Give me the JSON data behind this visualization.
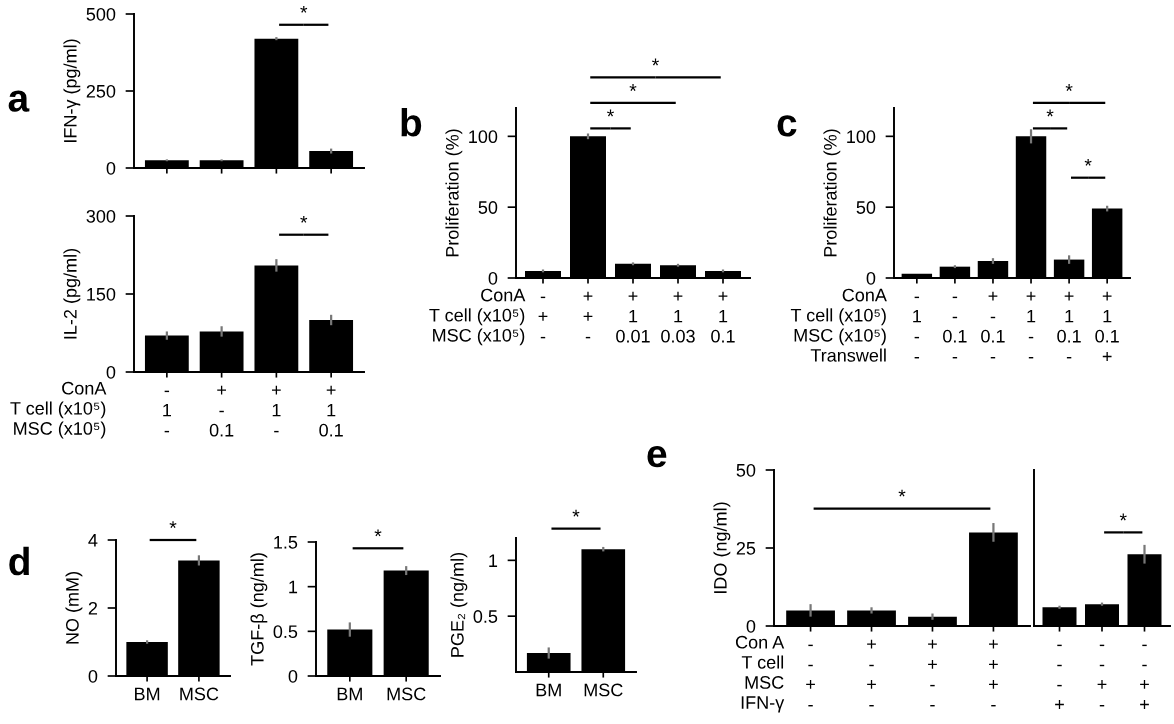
{
  "chart_data": [
    {
      "type": "bar",
      "title": "a",
      "ylabel": "IFN-γ (pg/ml)",
      "categories": [
        null,
        null,
        null,
        null
      ],
      "values": [
        25,
        25,
        420,
        55
      ],
      "errors": [
        3,
        3,
        5,
        8
      ],
      "color": "#000000",
      "ylim": [
        0,
        500
      ],
      "yticks": [
        0,
        250,
        500
      ],
      "tick_labels": "y",
      "annotations": [
        "*"
      ]
    },
    {
      "type": "bar",
      "xlabel": "ConA\nT cell (x10⁵)\nMSC (x10⁵)",
      "ylabel": "IL-2 (pg/ml)",
      "categories": [
        "-\n1\n-",
        "+\n-\n0.1",
        "+\n1\n-",
        "+\n1\n0.1"
      ],
      "values": [
        70,
        78,
        205,
        100
      ],
      "errors": [
        8,
        10,
        12,
        10
      ],
      "color": "#000000",
      "ylim": [
        0,
        300
      ],
      "yticks": [
        0,
        150,
        300
      ],
      "annotations": [
        "*"
      ]
    },
    {
      "type": "bar",
      "title": "b",
      "xlabel": "ConA\nT cell (x10⁵)\nMSC (x10⁵)",
      "ylabel": "Proliferation (%)",
      "categories": [
        "-\n+\n-",
        "+\n+\n-",
        "+\n1\n0.01",
        "+\n1\n0.03",
        "+\n1\n0.1"
      ],
      "values": [
        5,
        100,
        10,
        9,
        5
      ],
      "errors": [
        1,
        2,
        1,
        1,
        1
      ],
      "color": "#000000",
      "ylim": [
        0,
        120
      ],
      "yticks": [
        0,
        50,
        100
      ],
      "annotations": [
        "*",
        "*",
        "*"
      ]
    },
    {
      "type": "bar",
      "title": "c",
      "xlabel": "ConA\nT cell (x10⁵)\nMSC (x10⁵)\nTranswell",
      "ylabel": "Proliferation (%)",
      "categories": [
        "-\n1\n-\n-",
        "-\n-\n0.1\n-",
        "+\n-\n0.1\n-",
        "+\n1\n-\n-",
        "+\n1\n0.1\n-",
        "+\n1\n0.1\n+"
      ],
      "values": [
        3,
        8,
        12,
        100,
        13,
        49
      ],
      "errors": [
        null,
        1,
        2,
        5,
        3,
        2
      ],
      "color": "#000000",
      "ylim": [
        0,
        120
      ],
      "yticks": [
        0,
        50,
        100
      ],
      "annotations": [
        "*",
        "*",
        "*"
      ]
    },
    {
      "type": "bar",
      "title": "d",
      "ylabel": "NO (mM)",
      "categories": [
        "BM",
        "MSC"
      ],
      "values": [
        1,
        3.4
      ],
      "errors": [
        0.05,
        0.15
      ],
      "color": "#000000",
      "ylim": [
        0,
        4
      ],
      "yticks": [
        0,
        2,
        4
      ],
      "annotations": [
        "*"
      ]
    },
    {
      "type": "bar",
      "ylabel": "TGF-β (ng/ml)",
      "categories": [
        "BM",
        "MSC"
      ],
      "values": [
        0.52,
        1.18
      ],
      "errors": [
        0.08,
        0.05
      ],
      "color": "#000000",
      "ylim": [
        0,
        1.5
      ],
      "yticks": [
        0,
        0.5,
        1,
        1.5
      ],
      "annotations": [
        "*"
      ]
    },
    {
      "type": "bar",
      "ylabel": "PGE₂ (ng/ml)",
      "categories": [
        "BM",
        "MSC"
      ],
      "values": [
        0.17,
        1.1
      ],
      "errors": [
        0.05,
        0.02
      ],
      "color": "#000000",
      "ylim": [
        0,
        1.2
      ],
      "yticks": [
        0.5,
        1
      ],
      "annotations": [
        "*"
      ]
    },
    {
      "type": "bar",
      "title": "e",
      "xlabel": "Con A\nT cell\nMSC\nIFN-γ",
      "ylabel": "IDO (ng/ml)",
      "categories": [
        "-\n-\n+\n-",
        "+\n-\n+\n-",
        "+\n+\n-\n-",
        "+\n+\n+\n-"
      ],
      "values": [
        5,
        5,
        3,
        30
      ],
      "errors": [
        2,
        1,
        1,
        3
      ],
      "color": "#000000",
      "ylim": [
        0,
        50
      ],
      "yticks": [
        0,
        25,
        50
      ],
      "annotations": [
        "*"
      ]
    },
    {
      "type": "bar",
      "categories": [
        "-\n-\n-\n+",
        "-\n-\n+\n-",
        "-\n-\n+\n+"
      ],
      "values": [
        6,
        7,
        23
      ],
      "errors": [
        0.5,
        0.5,
        3
      ],
      "color": "#000000",
      "ylim": [
        0,
        50
      ],
      "yticks": [
        0,
        25,
        50
      ],
      "tick_labels": "x",
      "annotations": [
        "*"
      ]
    }
  ]
}
